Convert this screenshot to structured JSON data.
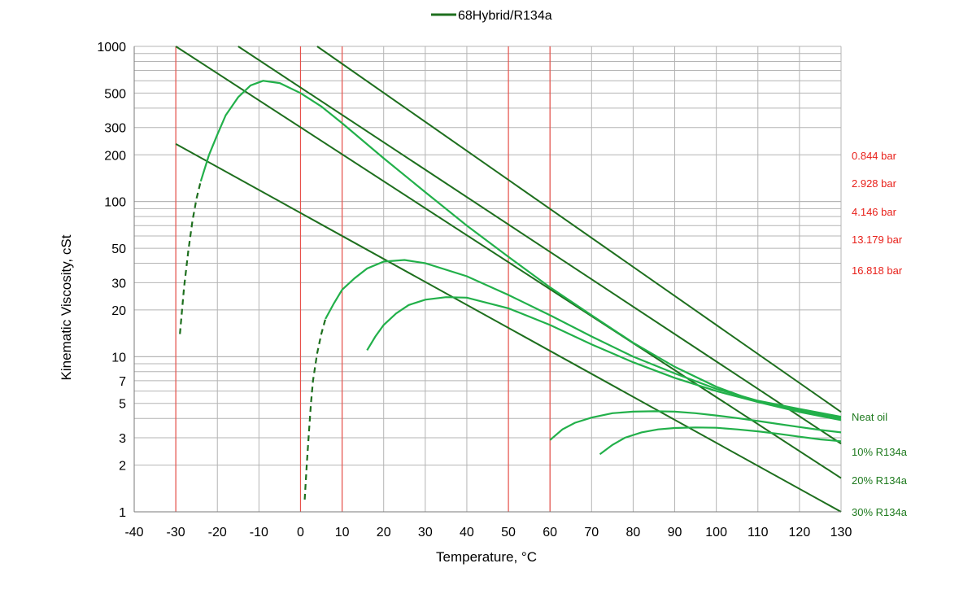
{
  "chart_data": {
    "type": "line",
    "xlabel": "Temperature, °C",
    "ylabel": "Kinematic Viscosity, cSt",
    "xlim": [
      -40,
      130
    ],
    "ylim": [
      1,
      1000
    ],
    "y_scale": "log",
    "x_ticks": [
      -40,
      -30,
      -20,
      -10,
      0,
      10,
      20,
      30,
      40,
      50,
      60,
      70,
      80,
      90,
      100,
      110,
      120,
      130
    ],
    "y_ticks": [
      1,
      2,
      3,
      5,
      7,
      10,
      20,
      30,
      50,
      100,
      200,
      300,
      500,
      1000
    ],
    "y_tick_labels": [
      "1",
      "2",
      "3",
      "5",
      "7",
      "10",
      "20",
      "30",
      "50",
      "100",
      "200",
      "300",
      "500",
      "1000"
    ],
    "grid": true,
    "legend": {
      "position": "top-center",
      "entries": [
        "68Hybrid/R134a"
      ]
    },
    "colors": {
      "series_dark": "#1e6f1e",
      "series_light": "#22b04a",
      "pressure_line": "#e8504a",
      "pressure_label": "#e8201a",
      "concentration_label": "#1e7a1e",
      "grid": "#b4b4b4"
    },
    "pressure_isotherms_x": [
      -30,
      0,
      10,
      50,
      60
    ],
    "pressure_labels": [
      "0.844 bar",
      "2.928 bar",
      "4.146 bar",
      "13.179 bar",
      "16.818 bar"
    ],
    "concentration_labels": [
      {
        "text": "Neat oil",
        "y": 4.1
      },
      {
        "text": "10% R134a",
        "y": 2.45
      },
      {
        "text": "20% R134a",
        "y": 1.6
      },
      {
        "text": "30% R134a",
        "y": 1.0
      }
    ],
    "concentration_lines": [
      {
        "name": "Neat oil",
        "x": [
          4,
          130
        ],
        "y": [
          1000,
          4.4
        ]
      },
      {
        "name": "10% R134a",
        "x": [
          -15,
          130
        ],
        "y": [
          1000,
          2.75
        ]
      },
      {
        "name": "20% R134a",
        "x": [
          -30,
          130
        ],
        "y": [
          1000,
          1.65
        ]
      },
      {
        "name": "30% R134a",
        "x": [
          -30,
          130
        ],
        "y": [
          235,
          1.0
        ]
      }
    ],
    "pressure_curves": [
      {
        "name": "0.844 bar",
        "x": [
          -29,
          -28,
          -27,
          -26,
          -25,
          -24,
          -22,
          -20,
          -18,
          -15,
          -12,
          -9,
          -5,
          0,
          5,
          10,
          20,
          30,
          40,
          50,
          60,
          70,
          80,
          90,
          100,
          110,
          120,
          130
        ],
        "y": [
          14,
          28,
          48,
          75,
          105,
          135,
          200,
          270,
          360,
          470,
          560,
          600,
          580,
          500,
          410,
          320,
          190,
          115,
          70,
          44,
          28,
          18.5,
          12.3,
          8.6,
          6.4,
          5.1,
          4.4,
          3.9
        ],
        "dashed_until_x": -24
      },
      {
        "name": "2.928 bar",
        "x": [
          1,
          1.5,
          2,
          2.5,
          3,
          4,
          5,
          6,
          8,
          10,
          13,
          16,
          20,
          25,
          30,
          40,
          50,
          60,
          70,
          80,
          90,
          100,
          110,
          120,
          130
        ],
        "y": [
          1.2,
          2,
          3.2,
          5,
          7,
          10.5,
          14,
          17.5,
          22,
          27,
          32,
          37,
          41,
          42,
          40,
          33,
          25,
          18.5,
          13.5,
          10,
          7.8,
          6.2,
          5.2,
          4.6,
          4.1
        ],
        "dashed_until_x": 6
      },
      {
        "name": "4.146 bar",
        "x": [
          16,
          18,
          20,
          23,
          26,
          30,
          35,
          40,
          50,
          60,
          70,
          80,
          90,
          100,
          110,
          120,
          130
        ],
        "y": [
          11,
          13.5,
          16,
          19,
          21.5,
          23.3,
          24.2,
          24,
          20.5,
          16,
          12,
          9.2,
          7.3,
          6.0,
          5.1,
          4.5,
          4.0
        ]
      },
      {
        "name": "13.179 bar",
        "x": [
          60,
          63,
          66,
          70,
          75,
          80,
          85,
          90,
          95,
          100,
          105,
          110,
          115,
          120,
          125,
          130
        ],
        "y": [
          2.9,
          3.4,
          3.75,
          4.05,
          4.32,
          4.42,
          4.45,
          4.42,
          4.32,
          4.18,
          4.02,
          3.85,
          3.68,
          3.52,
          3.37,
          3.25
        ]
      },
      {
        "name": "16.818 bar",
        "x": [
          72,
          75,
          78,
          82,
          86,
          90,
          95,
          100,
          105,
          110,
          115,
          120,
          125,
          130
        ],
        "y": [
          2.35,
          2.7,
          3.0,
          3.25,
          3.4,
          3.47,
          3.5,
          3.48,
          3.4,
          3.3,
          3.18,
          3.05,
          2.93,
          2.85
        ]
      }
    ]
  }
}
